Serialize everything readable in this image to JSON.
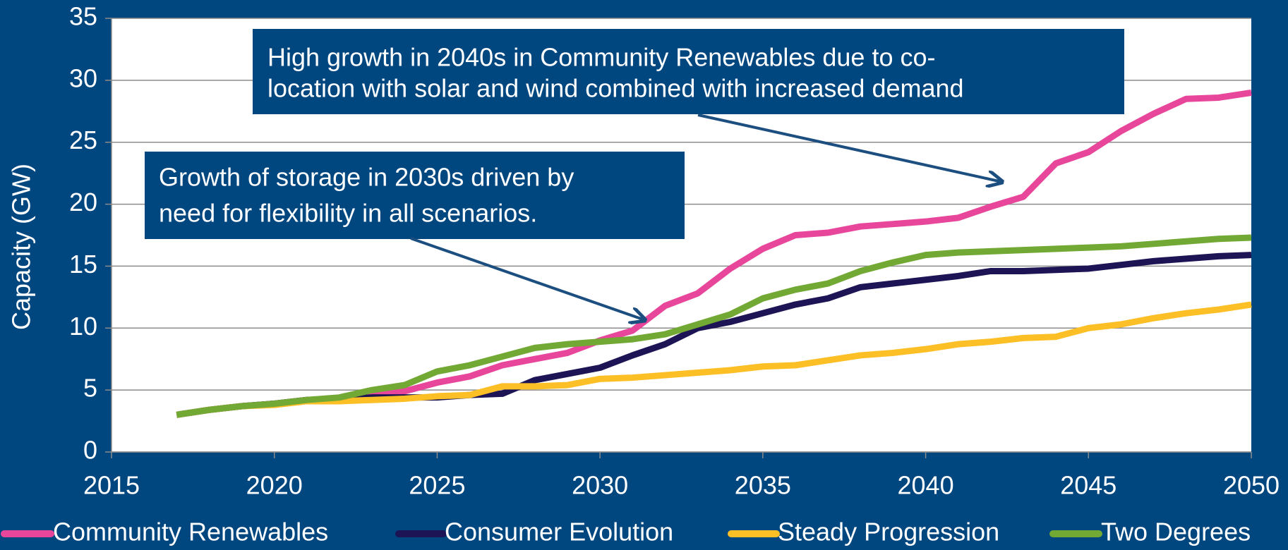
{
  "chart_data": {
    "type": "line",
    "ylabel": "Capacity (GW)",
    "x": [
      2017,
      2018,
      2019,
      2020,
      2021,
      2022,
      2023,
      2024,
      2025,
      2026,
      2027,
      2028,
      2029,
      2030,
      2031,
      2032,
      2033,
      2034,
      2035,
      2036,
      2037,
      2038,
      2039,
      2040,
      2041,
      2042,
      2043,
      2044,
      2045,
      2046,
      2047,
      2048,
      2049,
      2050
    ],
    "series": [
      {
        "name": "Community Renewables",
        "color": "#e8469a",
        "values": [
          3.0,
          3.4,
          3.7,
          3.9,
          4.2,
          4.3,
          4.6,
          4.9,
          5.6,
          6.1,
          7.0,
          7.5,
          8.0,
          9.0,
          9.8,
          11.8,
          12.8,
          14.8,
          16.4,
          17.5,
          17.7,
          18.2,
          18.4,
          18.6,
          18.9,
          19.8,
          20.6,
          23.3,
          24.2,
          25.9,
          27.3,
          28.5,
          28.6,
          29.0
        ]
      },
      {
        "name": "Consumer Evolution",
        "color": "#1c1454",
        "values": [
          3.0,
          3.4,
          3.7,
          3.9,
          4.2,
          4.3,
          4.4,
          4.4,
          4.4,
          4.6,
          4.7,
          5.8,
          6.3,
          6.8,
          7.8,
          8.7,
          10.0,
          10.5,
          11.2,
          11.9,
          12.4,
          13.3,
          13.6,
          13.9,
          14.2,
          14.6,
          14.6,
          14.7,
          14.8,
          15.1,
          15.4,
          15.6,
          15.8,
          15.9
        ]
      },
      {
        "name": "Steady Progression",
        "color": "#fcbf26",
        "values": [
          3.0,
          3.4,
          3.7,
          3.8,
          4.1,
          4.1,
          4.2,
          4.3,
          4.5,
          4.6,
          5.3,
          5.3,
          5.4,
          5.9,
          6.0,
          6.2,
          6.4,
          6.6,
          6.9,
          7.0,
          7.4,
          7.8,
          8.0,
          8.3,
          8.7,
          8.9,
          9.2,
          9.3,
          10.0,
          10.3,
          10.8,
          11.2,
          11.5,
          11.9
        ]
      },
      {
        "name": "Two Degrees",
        "color": "#72a834",
        "values": [
          3.0,
          3.4,
          3.7,
          3.9,
          4.2,
          4.4,
          5.0,
          5.4,
          6.5,
          7.0,
          7.7,
          8.4,
          8.7,
          8.9,
          9.1,
          9.5,
          10.3,
          11.1,
          12.4,
          13.1,
          13.6,
          14.6,
          15.3,
          15.9,
          16.1,
          16.2,
          16.3,
          16.4,
          16.5,
          16.6,
          16.8,
          17.0,
          17.2,
          17.3
        ]
      }
    ],
    "xlim": [
      2015,
      2050
    ],
    "xticks": [
      2015,
      2020,
      2025,
      2030,
      2035,
      2040,
      2045,
      2050
    ],
    "ylim": [
      0,
      35
    ],
    "yticks": [
      0,
      5,
      10,
      15,
      20,
      25,
      30,
      35
    ],
    "grid": true,
    "legend": "bottom",
    "annotations": [
      {
        "text": [
          "High growth in 2040s in Community Renewables due to co-",
          "location with solar and wind combined with increased demand"
        ]
      },
      {
        "text": [
          "Growth of storage in 2030s driven by",
          "need for flexibility in all scenarios."
        ]
      }
    ]
  }
}
